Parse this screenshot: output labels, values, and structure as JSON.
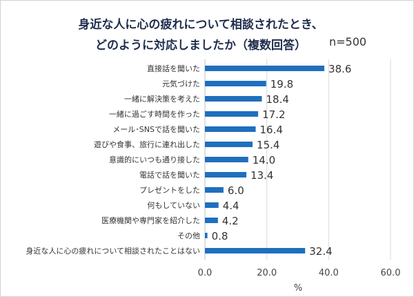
{
  "chart_data": {
    "type": "bar",
    "orientation": "horizontal",
    "title": [
      "身近な人に心の疲れについて相談されたとき、",
      "どのように対応しましたか（複数回答）"
    ],
    "annotation": "n=500",
    "categories": [
      "直接話を聞いた",
      "元気づけた",
      "一緒に解決策を考えた",
      "一緒に過ごす時間を作った",
      "メール･SNSで話を聞いた",
      "遊びや食事、旅行に連れ出した",
      "意識的にいつも通り接した",
      "電話で話を聞いた",
      "プレゼントをした",
      "何もしていない",
      "医療機関や専門家を紹介した",
      "その他",
      "身近な人に心の疲れについて相談されたことはない"
    ],
    "values": [
      38.6,
      19.8,
      18.4,
      17.2,
      16.4,
      15.4,
      14.0,
      13.4,
      6.0,
      4.4,
      4.2,
      0.8,
      32.4
    ],
    "xlabel": "%",
    "xlim": [
      0,
      60
    ],
    "xticks": [
      "0.0",
      "20.0",
      "40.0",
      "60.0"
    ],
    "grid": true,
    "bar_color": "#1f6fbf"
  }
}
